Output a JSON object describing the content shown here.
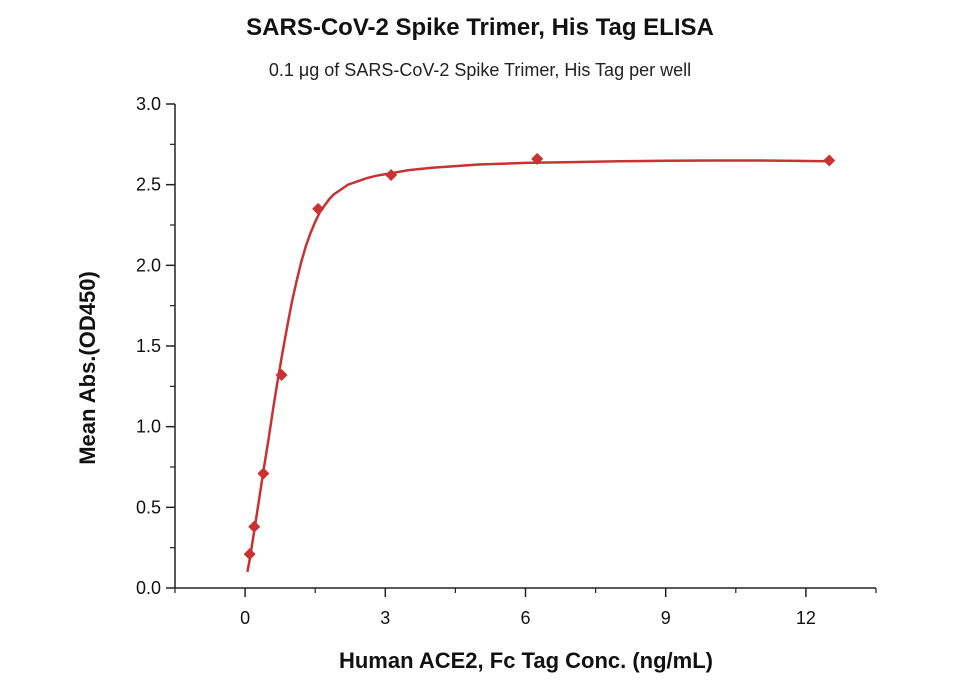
{
  "chart_data": {
    "type": "scatter",
    "title": "SARS-CoV-2 Spike Trimer, His Tag ELISA",
    "subtitle": "0.1 μg of SARS-CoV-2 Spike Trimer, His Tag per well",
    "xlabel": "Human ACE2, Fc Tag Conc. (ng/mL)",
    "ylabel": "Mean Abs.(OD450)",
    "xlim": [
      -1.5,
      13.5
    ],
    "ylim": [
      0,
      3.0
    ],
    "x_ticks": [
      0,
      3,
      6,
      9,
      12
    ],
    "y_ticks": [
      0.0,
      0.5,
      1.0,
      1.5,
      2.0,
      2.5,
      3.0
    ],
    "x_tick_labels": [
      "0",
      "3",
      "6",
      "9",
      "12"
    ],
    "y_tick_labels": [
      "0.0",
      "0.5",
      "1.0",
      "1.5",
      "2.0",
      "2.5",
      "3.0"
    ],
    "grid": false,
    "color": "#c83232",
    "series": [
      {
        "marker": "diamond",
        "x": [
          0.098,
          0.195,
          0.391,
          0.781,
          1.5625,
          3.125,
          6.25,
          12.5
        ],
        "y": [
          0.21,
          0.38,
          0.71,
          1.32,
          2.35,
          2.56,
          2.66,
          2.65
        ]
      }
    ],
    "fit_curve": {
      "x": [
        0.05,
        0.1,
        0.2,
        0.3,
        0.4,
        0.5,
        0.6,
        0.7,
        0.8,
        0.9,
        1.0,
        1.1,
        1.2,
        1.3,
        1.4,
        1.5,
        1.6,
        1.7,
        1.8,
        1.9,
        2.0,
        2.2,
        2.4,
        2.6,
        2.8,
        3.0,
        3.5,
        4.0,
        4.5,
        5.0,
        6.0,
        7.0,
        8.0,
        9.0,
        10.0,
        11.0,
        12.5
      ],
      "y": [
        0.1,
        0.18,
        0.36,
        0.55,
        0.74,
        0.92,
        1.11,
        1.29,
        1.46,
        1.62,
        1.77,
        1.9,
        2.02,
        2.12,
        2.2,
        2.27,
        2.33,
        2.37,
        2.41,
        2.44,
        2.46,
        2.5,
        2.52,
        2.54,
        2.555,
        2.565,
        2.59,
        2.605,
        2.615,
        2.625,
        2.635,
        2.64,
        2.645,
        2.648,
        2.65,
        2.65,
        2.645
      ]
    }
  }
}
